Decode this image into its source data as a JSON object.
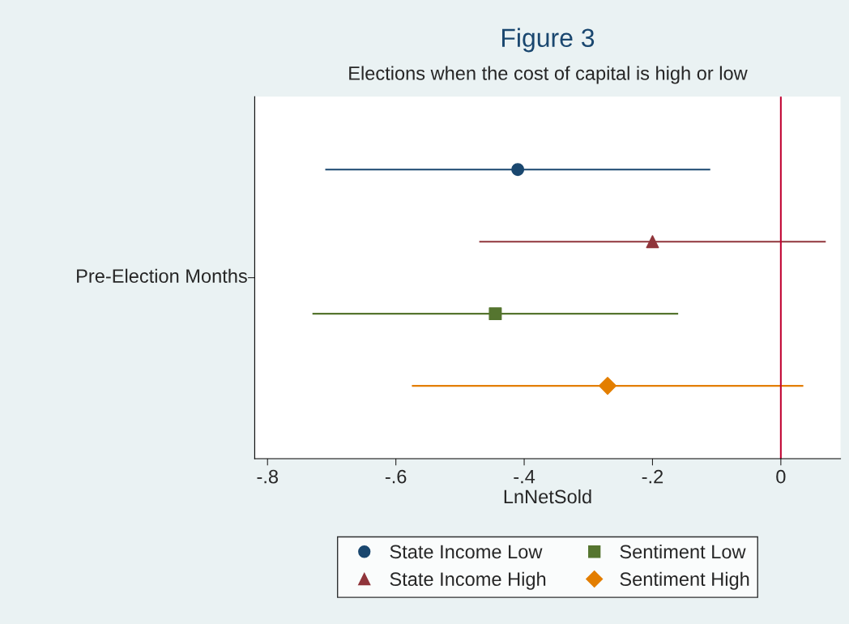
{
  "chart_data": {
    "type": "scatter",
    "orientation": "horizontal",
    "title": "Figure 3",
    "subtitle": "Elections when the cost of capital is high or low",
    "xlabel": "LnNetSold",
    "ylabel": "Pre-Election Months",
    "categories": [
      null,
      null,
      null,
      null
    ],
    "series": [
      {
        "name": "State Income Low",
        "color": "#1a476f",
        "marker": "circle",
        "values": [
          -0.41,
          null,
          null,
          null
        ],
        "errors": [
          [
            -0.71,
            -0.11
          ],
          null,
          null,
          null
        ]
      },
      {
        "name": "State Income High",
        "color": "#90353b",
        "marker": "triangle",
        "values": [
          null,
          -0.2,
          null,
          null
        ],
        "errors": [
          null,
          [
            -0.47,
            0.07
          ],
          null,
          null
        ]
      },
      {
        "name": "Sentiment Low",
        "color": "#55752f",
        "marker": "square",
        "values": [
          null,
          null,
          -0.445,
          null
        ],
        "errors": [
          null,
          null,
          [
            -0.73,
            -0.16
          ],
          null
        ]
      },
      {
        "name": "Sentiment High",
        "color": "#e37e00",
        "marker": "diamond",
        "values": [
          null,
          null,
          null,
          -0.27
        ],
        "errors": [
          null,
          null,
          null,
          [
            -0.575,
            0.035
          ]
        ]
      }
    ],
    "xlim": [
      -0.82,
      0.093
    ],
    "xticks": [
      {
        "value": -0.8,
        "label": "-.8"
      },
      {
        "value": -0.6,
        "label": "-.6"
      },
      {
        "value": -0.4,
        "label": "-.4"
      },
      {
        "value": -0.2,
        "label": "-.2"
      },
      0
    ],
    "ref_lines": [
      {
        "axis": "x",
        "value": 0,
        "color": "#c10534"
      }
    ],
    "grid": false,
    "legend": "bottom"
  }
}
